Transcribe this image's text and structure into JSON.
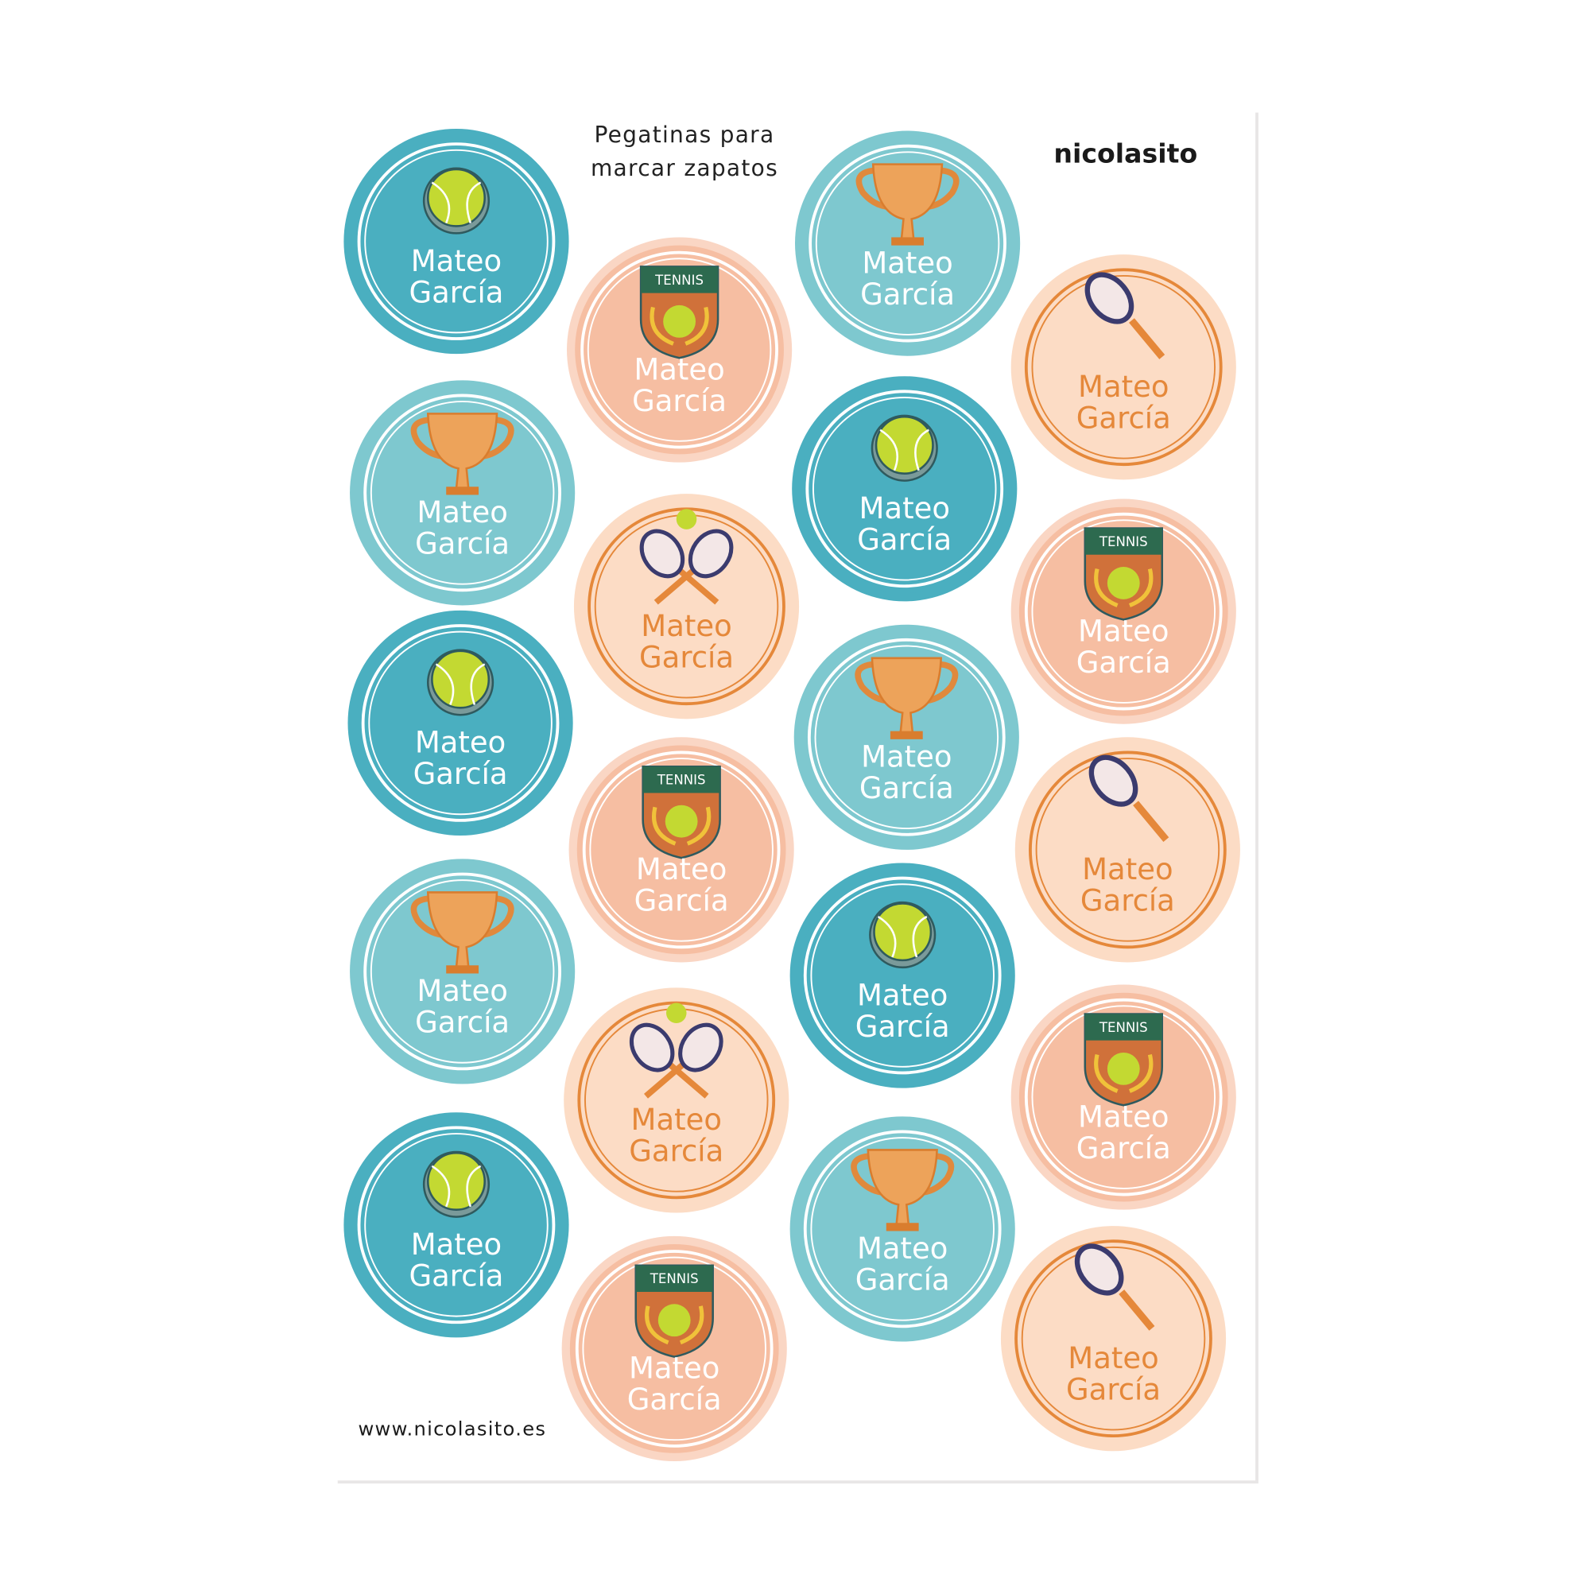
{
  "header": {
    "title_line1": "Pegatinas para",
    "title_line2": "marcar zapatos",
    "brand": "nicolasito"
  },
  "footer": {
    "url": "www.nicolasito.es"
  },
  "stickers": [
    {
      "line1": "Mateo",
      "line2": "García"
    },
    {
      "line1": "Mateo",
      "line2": "García"
    },
    {
      "line1": "Mateo",
      "line2": "García"
    },
    {
      "line1": "Mateo",
      "line2": "García"
    },
    {
      "line1": "Mateo",
      "line2": "García"
    },
    {
      "line1": "Mateo",
      "line2": "García",
      "badge": "TENNIS"
    },
    {
      "line1": "Mateo",
      "line2": "García"
    },
    {
      "line1": "Mateo",
      "line2": "García",
      "badge": "TENNIS"
    },
    {
      "line1": "Mateo",
      "line2": "García"
    },
    {
      "line1": "Mateo",
      "line2": "García",
      "badge": "TENNIS"
    },
    {
      "line1": "Mateo",
      "line2": "García"
    },
    {
      "line1": "Mateo",
      "line2": "García"
    },
    {
      "line1": "Mateo",
      "line2": "García"
    },
    {
      "line1": "Mateo",
      "line2": "García"
    },
    {
      "line1": "Mateo",
      "line2": "García"
    },
    {
      "line1": "Mateo",
      "line2": "García"
    },
    {
      "line1": "Mateo",
      "line2": "García",
      "badge": "TENNIS"
    },
    {
      "line1": "Mateo",
      "line2": "García"
    },
    {
      "line1": "Mateo",
      "line2": "García",
      "badge": "TENNIS"
    },
    {
      "line1": "Mateo",
      "line2": "García"
    }
  ]
}
